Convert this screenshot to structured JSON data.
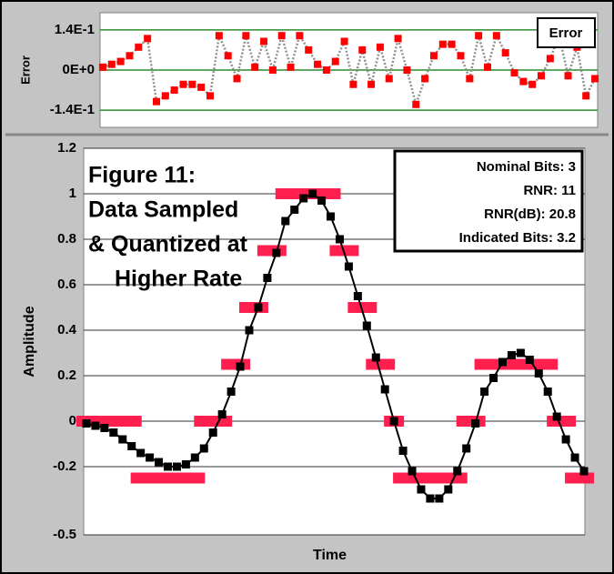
{
  "chart_data": [
    {
      "type": "line",
      "ylabel": "Error",
      "x": [
        0,
        1,
        2,
        3,
        4,
        5,
        6,
        7,
        8,
        9,
        10,
        11,
        12,
        13,
        14,
        15,
        16,
        17,
        18,
        19,
        20,
        21,
        22,
        23,
        24,
        25,
        26,
        27,
        28,
        29,
        30,
        31,
        32,
        33,
        34,
        35,
        36,
        37,
        38,
        39,
        40,
        41,
        42,
        43,
        44,
        45,
        46,
        47,
        48,
        49,
        50,
        51,
        52,
        53,
        54,
        55
      ],
      "xlim": [
        -0.3,
        55.3
      ],
      "ylim": [
        -0.2,
        0.2
      ],
      "yticks": [
        {
          "value": 0.14,
          "label": "1.4E-1"
        },
        {
          "value": 0,
          "label": "0E+0"
        },
        {
          "value": -0.14,
          "label": "-1.4E-1"
        }
      ],
      "series": [
        {
          "name": "Error",
          "color": "#ff0000",
          "values": [
            0.01,
            0.02,
            0.03,
            0.05,
            0.08,
            0.11,
            -0.11,
            -0.09,
            -0.07,
            -0.05,
            -0.05,
            -0.06,
            -0.09,
            0.12,
            0.05,
            -0.03,
            0.12,
            0.01,
            0.1,
            0,
            0.12,
            0.01,
            0.12,
            0.07,
            0.02,
            0,
            0.03,
            0.1,
            -0.05,
            0.07,
            -0.05,
            0.08,
            -0.03,
            0.11,
            0,
            -0.12,
            -0.03,
            0.05,
            0.09,
            0.09,
            0.05,
            -0.03,
            0.12,
            0.01,
            0.12,
            0.06,
            -0.01,
            -0.04,
            -0.05,
            -0.02,
            0.04,
            0.12,
            -0.02,
            0.08,
            -0.09,
            -0.03
          ]
        }
      ]
    },
    {
      "type": "line",
      "xlabel": "Time",
      "ylabel": "Amplitude",
      "annotations": [
        "Figure 11:",
        "Data Sampled",
        "& Quantized at",
        "Higher Rate"
      ],
      "stats": [
        "Nominal Bits: 3",
        "RNR: 11",
        "RNR(dB): 20.8",
        "Indicated Bits: 3.2"
      ],
      "x": [
        0,
        1,
        2,
        3,
        4,
        5,
        6,
        7,
        8,
        9,
        10,
        11,
        12,
        13,
        14,
        15,
        16,
        17,
        18,
        19,
        20,
        21,
        22,
        23,
        24,
        25,
        26,
        27,
        28,
        29,
        30,
        31,
        32,
        33,
        34,
        35,
        36,
        37,
        38,
        39,
        40,
        41,
        42,
        43,
        44,
        45,
        46,
        47,
        48,
        49,
        50,
        51,
        52,
        53,
        54,
        55
      ],
      "xlim": [
        -0.3,
        55.1
      ],
      "ylim": [
        -0.5,
        1.2
      ],
      "yticks": [
        1.2,
        1,
        0.8,
        0.6,
        0.4,
        0.2,
        0,
        -0.2,
        -0.5
      ],
      "series": [
        {
          "color": "#ff1f4f",
          "line": false,
          "values": [
            0,
            0,
            0,
            0,
            0,
            0,
            -0.25,
            -0.25,
            -0.25,
            -0.25,
            -0.25,
            -0.25,
            -0.25,
            0,
            0,
            0,
            0.25,
            0.25,
            0.5,
            0.5,
            0.75,
            0.75,
            1,
            1,
            1,
            1,
            1,
            1,
            0.75,
            0.75,
            0.5,
            0.5,
            0.25,
            0.25,
            0,
            -0.25,
            -0.25,
            -0.25,
            -0.25,
            -0.25,
            -0.25,
            -0.25,
            0,
            0,
            0.25,
            0.25,
            0.25,
            0.25,
            0.25,
            0.25,
            0.25,
            0.25,
            0,
            0,
            -0.25,
            -0.25
          ]
        },
        {
          "color": "#000000",
          "line": true,
          "values": [
            -0.01,
            -0.02,
            -0.03,
            -0.05,
            -0.08,
            -0.11,
            -0.14,
            -0.16,
            -0.18,
            -0.2,
            -0.2,
            -0.19,
            -0.16,
            -0.12,
            -0.05,
            0.03,
            0.13,
            0.24,
            0.4,
            0.5,
            0.63,
            0.74,
            0.88,
            0.93,
            0.98,
            1.0,
            0.97,
            0.9,
            0.8,
            0.68,
            0.55,
            0.42,
            0.28,
            0.14,
            0.0,
            -0.13,
            -0.22,
            -0.3,
            -0.34,
            -0.34,
            -0.3,
            -0.22,
            -0.12,
            -0.01,
            0.13,
            0.19,
            0.26,
            0.29,
            0.3,
            0.27,
            0.21,
            0.13,
            0.02,
            -0.08,
            -0.16,
            -0.22
          ]
        }
      ]
    }
  ]
}
